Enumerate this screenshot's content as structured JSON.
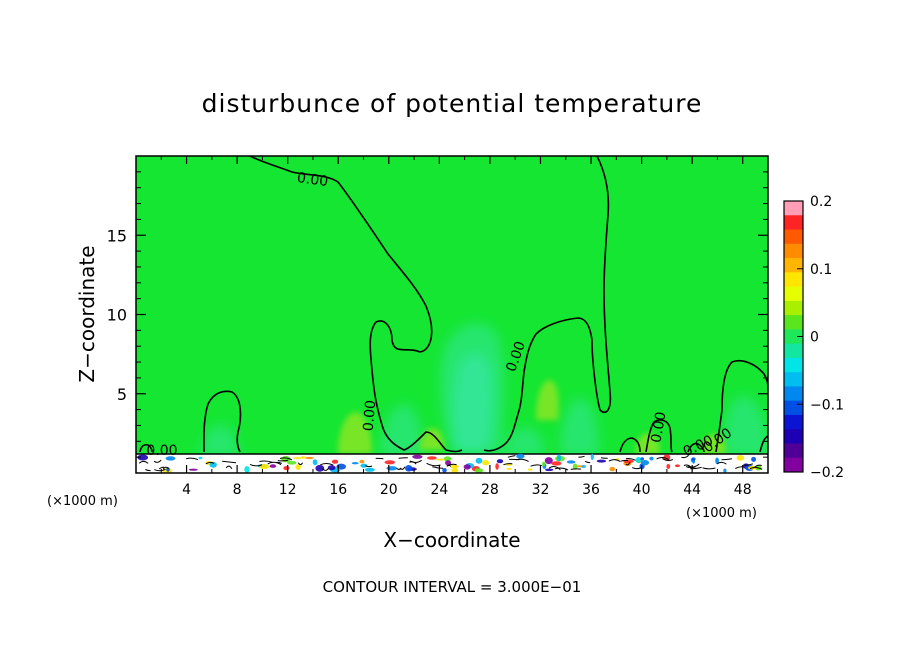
{
  "chart_data": {
    "type": "heatmap",
    "title": "disturbunce of potential temperature",
    "xlabel": "X−coordinate",
    "ylabel": "Z−coordinate",
    "x_unit_left": "(×1000 m)",
    "x_unit_right": "(×1000 m)",
    "x_ticks": [
      "4",
      "8",
      "12",
      "16",
      "20",
      "24",
      "28",
      "32",
      "36",
      "40",
      "44",
      "48"
    ],
    "y_ticks": [
      "5",
      "10",
      "15"
    ],
    "xlim": [
      0,
      50
    ],
    "ylim": [
      0,
      20
    ],
    "grid": false,
    "legend": "right",
    "colorbar": {
      "tick_labels": [
        "0.2",
        "0.1",
        "0",
        "−0.1",
        "−0.2"
      ],
      "range": [
        -0.2,
        0.2
      ],
      "colors": [
        "#ff9eb6",
        "#ff2424",
        "#ff5a00",
        "#ff8c00",
        "#ffb400",
        "#ffe600",
        "#e6ff00",
        "#a8f000",
        "#5ae61e",
        "#1ee85a",
        "#12e6a0",
        "#00e6e6",
        "#00bef0",
        "#0087f0",
        "#0050e6",
        "#0a14d2",
        "#1e00b4",
        "#500096",
        "#8200a0"
      ]
    },
    "field_colors": {
      "background": "#14e632",
      "slightly_negative": "#28e66e",
      "negative_core": "#32e696",
      "slightly_positive": "#78e628"
    },
    "contour_labels": [
      "0.00",
      "0.00",
      "0.00",
      "0.00",
      "0.00",
      "0.00",
      "0.00"
    ],
    "contour_interval_note": "CONTOUR INTERVAL = 3.000E−01"
  }
}
